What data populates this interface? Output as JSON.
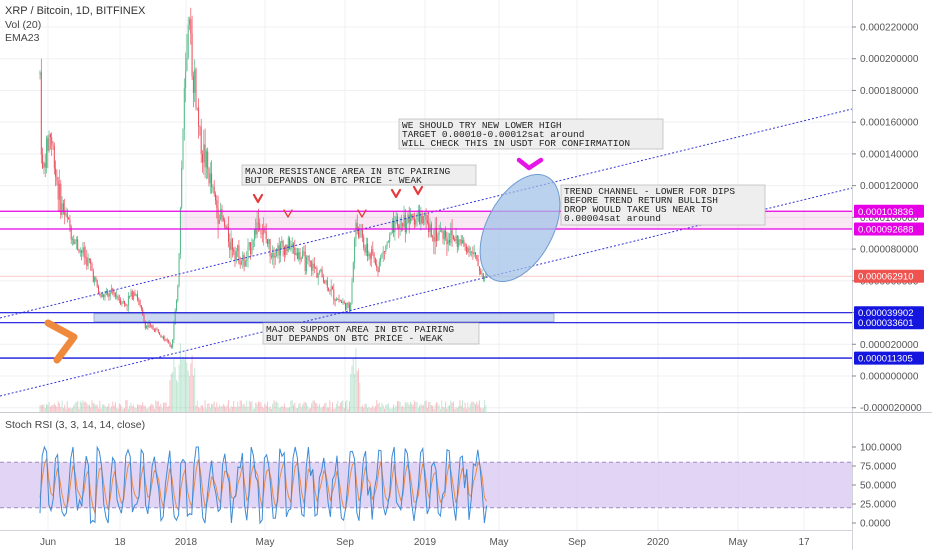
{
  "header": {
    "symbol": "XRP / Bitcoin, 1D, BITFINEX",
    "vol": "Vol (20)",
    "ema": "EMA23"
  },
  "colors": {
    "candle_up": "#53b987",
    "candle_down": "#eb4d5c",
    "trend_line": "#3535d9",
    "resistance_line": "#e600e6",
    "support_line": "#1515e0",
    "rsi_band": "#d8c6f2",
    "rsi_k": "#3d8bd6",
    "rsi_d": "#ef8a45",
    "ellipse": "#9fc1e6",
    "arrow": "#ef8a3c",
    "marker": "#e63a3a"
  },
  "annotations": {
    "resistance": [
      "MAJOR RESISTANCE AREA IN BTC PAIRING",
      "BUT DEPANDS ON BTC PRICE - WEAK"
    ],
    "support": [
      "MAJOR SUPPORT AREA IN BTC PAIRING",
      "BUT DEPANDS ON BTC PRICE - WEAK"
    ],
    "target": [
      "WE SHOULD TRY NEW LOWER HIGH",
      "TARGET 0.00010-0.00012sat around",
      "WILL CHECK THIS IN USDT FOR CONFIRMATION"
    ],
    "channel": [
      "TREND CHANNEL - LOWER FOR DIPS",
      "BEFORE TREND RETURN BULLISH",
      "DROP WOULD TAKE US NEAR TO",
      "0.00004sat around"
    ]
  },
  "rsi_label": "Stoch RSI (3, 3, 14, 14, close)",
  "chart_data": [
    {
      "type": "candlestick",
      "title": "XRP / Bitcoin, 1D, BITFINEX",
      "x_ticks": [
        "Jun",
        "18",
        "2018",
        "May",
        "Sep",
        "2019",
        "May",
        "Sep",
        "2020",
        "May",
        "17"
      ],
      "y_ticks": [
        "0.000220000",
        "0.000200000",
        "0.000180000",
        "0.000160000",
        "0.000140000",
        "0.000120000",
        "0.000100000",
        "0.000080000",
        "0.000060000",
        "0.000040000",
        "0.000020000",
        "0.000000000",
        "-0.000020000"
      ],
      "ylim": [
        -2e-05,
        0.000232
      ],
      "horizontal_levels": [
        {
          "value": 0.000103836,
          "label": "0.000103836",
          "color": "#e600e6"
        },
        {
          "value": 9.2688e-05,
          "label": "0.000092688",
          "color": "#e600e6"
        },
        {
          "value": 6.291e-05,
          "label": "0.000062910",
          "color": "#ef5350"
        },
        {
          "value": 3.9902e-05,
          "label": "0.000039902",
          "color": "#1515e0"
        },
        {
          "value": 3.3601e-05,
          "label": "0.000033601",
          "color": "#1515e0"
        },
        {
          "value": 1.1305e-05,
          "label": "0.000011305",
          "color": "#1515e0"
        }
      ],
      "series": [
        {
          "name": "Vol (20)"
        },
        {
          "name": "EMA23"
        }
      ],
      "price_path": [
        {
          "x": "Jun 2017",
          "y": 0.00019
        },
        {
          "x": "Jun 2017",
          "y": 0.000125
        },
        {
          "x": "Jul 2017",
          "y": 8.5e-05
        },
        {
          "x": "Aug 2017",
          "y": 5.5e-05
        },
        {
          "x": "Sep 2017",
          "y": 4.8e-05
        },
        {
          "x": "Oct 2017",
          "y": 3.5e-05
        },
        {
          "x": "Nov 2017",
          "y": 2.8e-05
        },
        {
          "x": "Dec 2017",
          "y": 1.8e-05
        },
        {
          "x": "Dec 2017",
          "y": 8e-05
        },
        {
          "x": "Jan 2018",
          "y": 0.000215
        },
        {
          "x": "Feb 2018",
          "y": 0.00012
        },
        {
          "x": "Mar 2018",
          "y": 7.5e-05
        },
        {
          "x": "Apr 2018",
          "y": 7e-05
        },
        {
          "x": "May 2018",
          "y": 9.5e-05
        },
        {
          "x": "Jun 2018",
          "y": 7.8e-05
        },
        {
          "x": "Jul 2018",
          "y": 6.8e-05
        },
        {
          "x": "Aug 2018",
          "y": 4.2e-05
        },
        {
          "x": "Sep 2018",
          "y": 9.5e-05
        },
        {
          "x": "Oct 2018",
          "y": 7e-05
        },
        {
          "x": "Nov 2018",
          "y": 9.8e-05
        },
        {
          "x": "Dec 2018",
          "y": 9.8e-05
        },
        {
          "x": "Jan 2019",
          "y": 9.2e-05
        },
        {
          "x": "Feb 2019",
          "y": 8.5e-05
        },
        {
          "x": "Mar 2019",
          "y": 8e-05
        },
        {
          "x": "Apr 2019",
          "y": 6.2e-05
        }
      ]
    },
    {
      "type": "line",
      "title": "Stoch RSI (3, 3, 14, 14, close)",
      "y_ticks": [
        "100.0000",
        "75.0000",
        "50.0000",
        "25.0000",
        "0.0000"
      ],
      "ylim": [
        -5,
        105
      ],
      "band": [
        20,
        80
      ],
      "series": [
        {
          "name": "K"
        },
        {
          "name": "D"
        }
      ]
    }
  ]
}
